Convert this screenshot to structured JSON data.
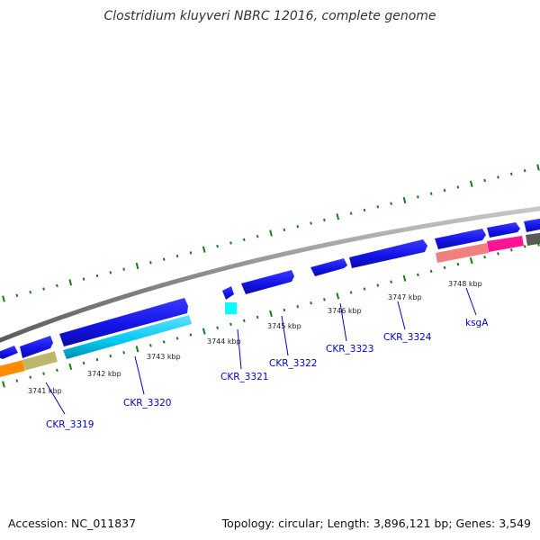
{
  "map_title": "Clostridium kluyveri NBRC 12016, complete genome",
  "footer": {
    "accession": "Accession: NC_011837",
    "topology": "Topology: circular; Length: 3,896,121 bp; Genes: 3,549"
  },
  "ticks": [
    {
      "label": "3741 kbp"
    },
    {
      "label": "3742 kbp"
    },
    {
      "label": "3743 kbp"
    },
    {
      "label": "3744 kbp"
    },
    {
      "label": "3745 kbp"
    },
    {
      "label": "3746 kbp"
    },
    {
      "label": "3747 kbp"
    },
    {
      "label": "3748 kbp"
    }
  ],
  "gene_labels": [
    {
      "label": "CKR_3319"
    },
    {
      "label": "CKR_3320"
    },
    {
      "label": "CKR_3321"
    },
    {
      "label": "CKR_3322"
    },
    {
      "label": "CKR_3323"
    },
    {
      "label": "CKR_3324"
    },
    {
      "label": "ksgA"
    }
  ],
  "colors": {
    "forward_strand_gene": "#1a1aee",
    "reverse_strand_gene": "#00ccee",
    "backbone": "#909090",
    "tick": "#1a7a1a",
    "orange_feature": "#ff8c00",
    "khaki_feature": "#bdb76b",
    "salmon_feature": "#f08080",
    "pink_feature": "#ff1493",
    "cyan_small_feature": "#00ffff",
    "label": "#0000cc"
  }
}
